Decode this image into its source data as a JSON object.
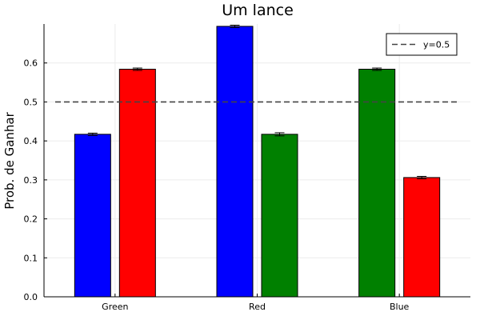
{
  "chart_data": {
    "type": "bar",
    "title": "Um lance",
    "xlabel": "",
    "ylabel": "Prob. de Ganhar",
    "categories": [
      "Green",
      "Red",
      "Blue"
    ],
    "bars": [
      {
        "category": "Green",
        "color": "#0000ff",
        "value": 0.417,
        "error": 0.003
      },
      {
        "category": "Green",
        "color": "#ff0000",
        "value": 0.584,
        "error": 0.003
      },
      {
        "category": "Red",
        "color": "#0000ff",
        "value": 0.694,
        "error": 0.003
      },
      {
        "category": "Red",
        "color": "#008000",
        "value": 0.417,
        "error": 0.004
      },
      {
        "category": "Blue",
        "color": "#008000",
        "value": 0.584,
        "error": 0.003
      },
      {
        "category": "Blue",
        "color": "#ff0000",
        "value": 0.306,
        "error": 0.003
      }
    ],
    "reference_line": {
      "y": 0.5,
      "label": "y=0.5",
      "style": "dashed",
      "color": "#444444"
    },
    "ylim": [
      0,
      0.7
    ],
    "yticks": [
      "0.0",
      "0.1",
      "0.2",
      "0.3",
      "0.4",
      "0.5",
      "0.6"
    ],
    "grid": true,
    "legend_position": "top-right"
  }
}
